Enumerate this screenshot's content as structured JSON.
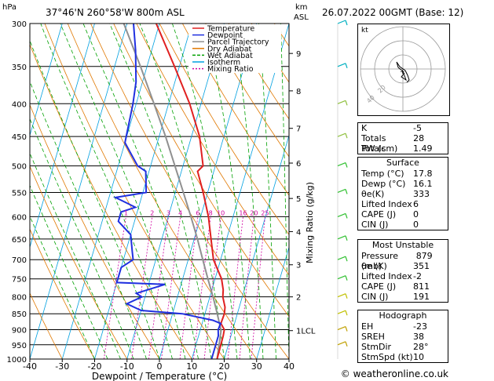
{
  "header": {
    "location": "37°46'N  260°58'W  800m  ASL",
    "date": "26.07.2022  00GMT  (Base: 12)",
    "hpa_label": "hPa",
    "km_label": "km",
    "asl_label": "ASL"
  },
  "chart_data": {
    "type": "line",
    "title": "",
    "xlabel": "Dewpoint / Temperature (°C)",
    "ylabel": "",
    "right_axis_label": "Mixing Ratio (g/kg)",
    "xlim": [
      -40,
      40
    ],
    "pressure_range": [
      300,
      1000
    ],
    "x_ticks": [
      -40,
      -30,
      -20,
      -10,
      0,
      10,
      20,
      30,
      40
    ],
    "pressure_ticks": [
      300,
      350,
      400,
      450,
      500,
      550,
      600,
      650,
      700,
      750,
      800,
      850,
      900,
      950,
      1000
    ],
    "km_ticks": [
      {
        "label": "9",
        "p": 334
      },
      {
        "label": "8",
        "p": 382
      },
      {
        "label": "7",
        "p": 437
      },
      {
        "label": "6",
        "p": 495
      },
      {
        "label": "5",
        "p": 562
      },
      {
        "label": "4",
        "p": 633
      },
      {
        "label": "3",
        "p": 713
      },
      {
        "label": "2",
        "p": 800
      },
      {
        "label": "1LCL",
        "p": 903
      }
    ],
    "mixing_ratio_labels": [
      "1",
      "2",
      "3",
      "4",
      "6",
      "8",
      "10",
      "16",
      "20",
      "25"
    ],
    "mixing_ratio_values": [
      1,
      2,
      3,
      4,
      6,
      8,
      10,
      16,
      20,
      25
    ],
    "legend": [
      "Temperature",
      "Dewpoint",
      "Parcel Trajectory",
      "Dry Adiabat",
      "Wet Adiabat",
      "Isotherm",
      "Mixing Ratio"
    ],
    "colors": {
      "temperature": "#e02020",
      "dewpoint": "#2030e0",
      "parcel": "#909090",
      "dry_adiabat": "#e07800",
      "wet_adiabat": "#00a000",
      "isotherm": "#00a0e0",
      "mixing_ratio": "#d000a0"
    },
    "series": [
      {
        "name": "Temperature",
        "points": [
          [
            1000,
            17.8
          ],
          [
            920,
            17.6
          ],
          [
            900,
            17.4
          ],
          [
            880,
            15.8
          ],
          [
            850,
            16.0
          ],
          [
            830,
            15.6
          ],
          [
            800,
            14.0
          ],
          [
            780,
            13.5
          ],
          [
            750,
            12.0
          ],
          [
            700,
            7.8
          ],
          [
            650,
            5.2
          ],
          [
            600,
            2.4
          ],
          [
            550,
            -1.4
          ],
          [
            510,
            -5.0
          ],
          [
            500,
            -3.8
          ],
          [
            450,
            -7.5
          ],
          [
            400,
            -13.5
          ],
          [
            350,
            -21.5
          ],
          [
            300,
            -31.0
          ]
        ]
      },
      {
        "name": "Dewpoint",
        "points": [
          [
            1000,
            16.1
          ],
          [
            920,
            16.1
          ],
          [
            900,
            15.5
          ],
          [
            880,
            15.7
          ],
          [
            870,
            13.0
          ],
          [
            850,
            3.0
          ],
          [
            840,
            -10.0
          ],
          [
            820,
            -15.0
          ],
          [
            800,
            -11.0
          ],
          [
            790,
            -13.0
          ],
          [
            765,
            -5.0
          ],
          [
            760,
            -20.0
          ],
          [
            720,
            -20.0
          ],
          [
            700,
            -17.0
          ],
          [
            680,
            -18.0
          ],
          [
            640,
            -20.0
          ],
          [
            610,
            -25.0
          ],
          [
            590,
            -25.0
          ],
          [
            580,
            -21.0
          ],
          [
            560,
            -28.0
          ],
          [
            550,
            -19.0
          ],
          [
            510,
            -21.0
          ],
          [
            500,
            -24.0
          ],
          [
            460,
            -30.0
          ],
          [
            400,
            -31.0
          ],
          [
            370,
            -32.0
          ],
          [
            330,
            -35.0
          ],
          [
            300,
            -38.0
          ]
        ]
      },
      {
        "name": "Parcel Trajectory",
        "points": [
          [
            1000,
            17.8
          ],
          [
            903,
            16.5
          ],
          [
            850,
            13.8
          ],
          [
            800,
            11.0
          ],
          [
            750,
            7.8
          ],
          [
            700,
            4.5
          ],
          [
            650,
            1.0
          ],
          [
            600,
            -3.0
          ],
          [
            550,
            -7.5
          ],
          [
            500,
            -12.5
          ],
          [
            450,
            -18.0
          ],
          [
            400,
            -24.5
          ],
          [
            350,
            -32.0
          ],
          [
            300,
            -41.0
          ]
        ]
      }
    ]
  },
  "indices": {
    "k_label": "K",
    "k_value": "-5",
    "tt_label": "Totals Totals",
    "tt_value": "28",
    "pw_label": "PW (cm)",
    "pw_value": "1.49"
  },
  "surface": {
    "title": "Surface",
    "rows": [
      {
        "label": "Temp (°C)",
        "value": "17.8"
      },
      {
        "label": "Dewp (°C)",
        "value": "16.1"
      },
      {
        "label": "θe(K)",
        "value": "333"
      },
      {
        "label": "Lifted Index",
        "value": "6"
      },
      {
        "label": "CAPE (J)",
        "value": "0"
      },
      {
        "label": "CIN (J)",
        "value": "0"
      }
    ]
  },
  "most_unstable": {
    "title": "Most Unstable",
    "rows": [
      {
        "label": "Pressure (mb)",
        "value": "879"
      },
      {
        "label": "θe (K)",
        "value": "351"
      },
      {
        "label": "Lifted Index",
        "value": "-2"
      },
      {
        "label": "CAPE (J)",
        "value": "811"
      },
      {
        "label": "CIN (J)",
        "value": "191"
      }
    ]
  },
  "hodograph_table": {
    "title": "Hodograph",
    "rows": [
      {
        "label": "EH",
        "value": "-23"
      },
      {
        "label": "SREH",
        "value": "38"
      },
      {
        "label": "StmDir",
        "value": "28°"
      },
      {
        "label": "StmSpd (kt)",
        "value": "10"
      }
    ]
  },
  "hodograph": {
    "kt_label": "kt",
    "ring_labels": [
      "20",
      "40"
    ]
  },
  "credit": "© weatheronline.co.uk"
}
